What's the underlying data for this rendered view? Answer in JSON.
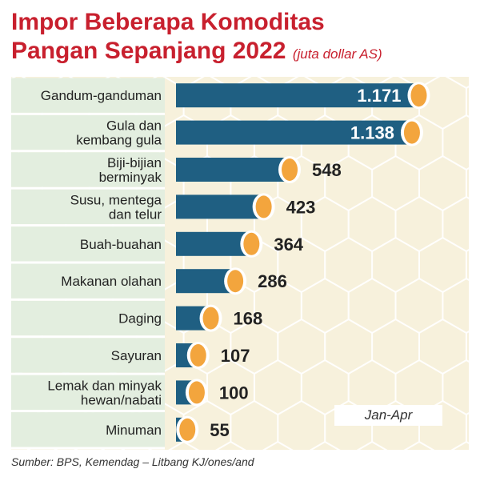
{
  "title": {
    "line1": "Impor Beberapa Komoditas",
    "line2": "Pangan Sepanjang 2022",
    "unit": "(juta dollar AS)"
  },
  "period_label": "Jan-Apr",
  "source": "Sumber: BPS, Kemendag – Litbang KJ/ones/and",
  "colors": {
    "title": "#c8202e",
    "bar": "#1f5f82",
    "bar_cap": "#f3a53d",
    "label_band": "#e3eedf",
    "background_pattern": "#f7f1dc"
  },
  "chart_data": {
    "type": "bar",
    "orientation": "horizontal",
    "categories": [
      [
        "Gandum-ganduman"
      ],
      [
        "Gula dan",
        "kembang gula"
      ],
      [
        "Biji-bijian",
        "berminyak"
      ],
      [
        "Susu, mentega",
        "dan telur"
      ],
      [
        "Buah-buahan"
      ],
      [
        "Makanan olahan"
      ],
      [
        "Daging"
      ],
      [
        "Sayuran"
      ],
      [
        "Lemak dan minyak",
        "hewan/nabati"
      ],
      [
        "Minuman"
      ]
    ],
    "values": [
      1171,
      1138,
      548,
      423,
      364,
      286,
      168,
      107,
      100,
      55
    ],
    "value_labels": [
      "1.171",
      "1.138",
      "548",
      "423",
      "364",
      "286",
      "168",
      "107",
      "100",
      "55"
    ],
    "xlim": [
      0,
      1200
    ],
    "unit": "juta dollar AS"
  }
}
